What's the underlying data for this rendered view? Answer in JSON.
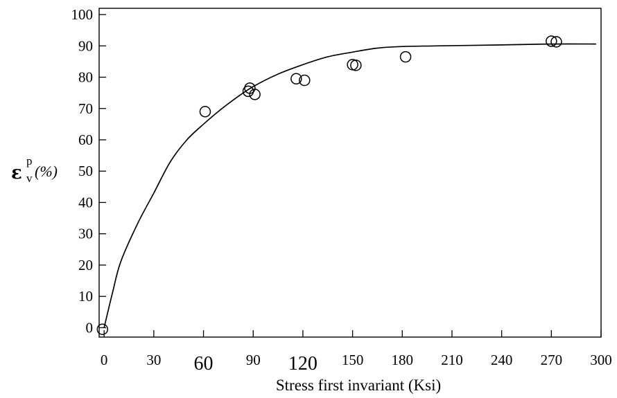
{
  "chart_data": {
    "type": "scatter",
    "xlabel": "Stress first invariant (Ksi)",
    "ylabel": {
      "symbol": "ε",
      "superscript": "p",
      "subscript": "v",
      "unit": "(%)"
    },
    "xlim": [
      -3,
      300
    ],
    "ylim": [
      -3,
      102
    ],
    "x_ticks": [
      0,
      30,
      60,
      90,
      120,
      150,
      180,
      210,
      240,
      270,
      300
    ],
    "x_tick_labels": [
      "0",
      "30",
      "60",
      "90",
      "120",
      "150",
      "180",
      "210",
      "240",
      "270",
      "300"
    ],
    "y_ticks": [
      0,
      10,
      20,
      30,
      40,
      50,
      60,
      70,
      80,
      90,
      100
    ],
    "y_tick_labels": [
      "0",
      "10",
      "20",
      "30",
      "40",
      "50",
      "60",
      "70",
      "80",
      "90",
      "100"
    ],
    "grid": false,
    "legend": "none",
    "series": [
      {
        "kind": "markers",
        "marker": "open-circle",
        "points": [
          {
            "x": -1,
            "y": -0.5
          },
          {
            "x": 61,
            "y": 69
          },
          {
            "x": 87,
            "y": 75.5
          },
          {
            "x": 88,
            "y": 76.5
          },
          {
            "x": 91,
            "y": 74.5
          },
          {
            "x": 116,
            "y": 79.5
          },
          {
            "x": 121,
            "y": 79
          },
          {
            "x": 150,
            "y": 84
          },
          {
            "x": 152,
            "y": 83.8
          },
          {
            "x": 182,
            "y": 86.5
          },
          {
            "x": 270,
            "y": 91.5
          },
          {
            "x": 273,
            "y": 91.3
          }
        ]
      },
      {
        "kind": "line",
        "points": [
          {
            "x": 0,
            "y": 0
          },
          {
            "x": 5,
            "y": 11
          },
          {
            "x": 10,
            "y": 21
          },
          {
            "x": 20,
            "y": 33
          },
          {
            "x": 30,
            "y": 43
          },
          {
            "x": 40,
            "y": 53
          },
          {
            "x": 50,
            "y": 60
          },
          {
            "x": 60,
            "y": 65
          },
          {
            "x": 70,
            "y": 69.5
          },
          {
            "x": 80,
            "y": 73.5
          },
          {
            "x": 90,
            "y": 77
          },
          {
            "x": 105,
            "y": 81
          },
          {
            "x": 120,
            "y": 84
          },
          {
            "x": 135,
            "y": 86.5
          },
          {
            "x": 150,
            "y": 88
          },
          {
            "x": 165,
            "y": 89.3
          },
          {
            "x": 180,
            "y": 89.8
          },
          {
            "x": 200,
            "y": 90
          },
          {
            "x": 240,
            "y": 90.3
          },
          {
            "x": 270,
            "y": 90.6
          },
          {
            "x": 297,
            "y": 90.6
          }
        ]
      }
    ]
  }
}
